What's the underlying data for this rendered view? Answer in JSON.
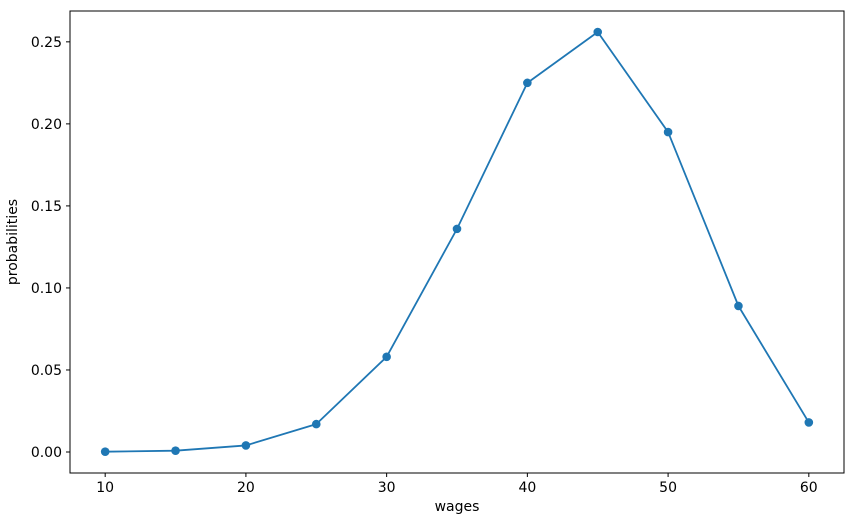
{
  "chart_data": {
    "type": "line",
    "title": "",
    "xlabel": "wages",
    "ylabel": "probabilities",
    "x": [
      10,
      15,
      20,
      25,
      30,
      35,
      40,
      45,
      50,
      55,
      60
    ],
    "values": [
      0.0002,
      0.0008,
      0.004,
      0.017,
      0.058,
      0.136,
      0.225,
      0.256,
      0.195,
      0.089,
      0.018
    ],
    "series_name": "probabilities",
    "xlim": [
      7.5,
      62.5
    ],
    "ylim": [
      -0.0128,
      0.2688
    ],
    "x_ticks": [
      10,
      20,
      30,
      40,
      50,
      60
    ],
    "x_tick_labels": [
      "10",
      "20",
      "30",
      "40",
      "50",
      "60"
    ],
    "y_ticks": [
      0.0,
      0.05,
      0.1,
      0.15,
      0.2,
      0.25
    ],
    "y_tick_labels": [
      "0.00",
      "0.05",
      "0.10",
      "0.15",
      "0.20",
      "0.25"
    ],
    "grid": false,
    "legend": "none",
    "line_color": "#1f77b4",
    "marker": "circle",
    "marker_color": "#1f77b4",
    "spine_color": "#000000",
    "background_color": "#ffffff"
  }
}
